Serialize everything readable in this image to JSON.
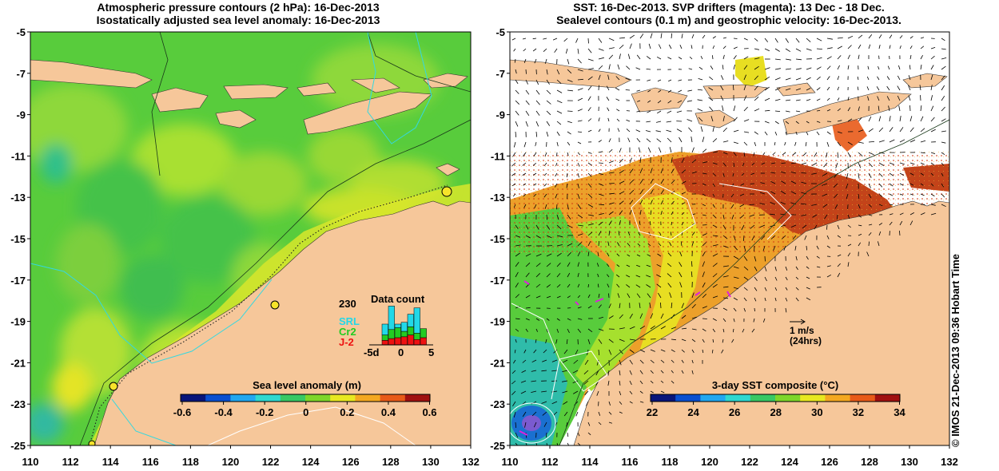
{
  "left_panel": {
    "title_line1": "Atmospheric pressure contours (2 hPa): 16-Dec-2013",
    "title_line2": "Isostatically adjusted sea level anomaly: 16-Dec-2013",
    "colorbar_title": "Sea level anomaly (m)",
    "colorbar_ticks": [
      "-0.6",
      "-0.4",
      "-0.2",
      "0",
      "0.2",
      "0.4",
      "0.6"
    ],
    "colorbar_colors": [
      "#08157a",
      "#0a4fd0",
      "#21a7f0",
      "#2fd8d0",
      "#38c864",
      "#7ed62a",
      "#e8e820",
      "#f4a820",
      "#e85a18",
      "#a01010"
    ],
    "inset": {
      "title": "Data count",
      "max_label": "230",
      "x_ticks": [
        "-5d",
        "0",
        "5"
      ],
      "missions": [
        {
          "name": "SRL",
          "color": "#22d8e8"
        },
        {
          "name": "Cr2",
          "color": "#22cc22"
        },
        {
          "name": "J-2",
          "color": "#ee1111"
        }
      ],
      "bars": [
        {
          "day": -5,
          "srl": 0,
          "cr2": 0,
          "j2": 0
        },
        {
          "day": -4,
          "srl": 0,
          "cr2": 0,
          "j2": 0
        },
        {
          "day": -3,
          "srl": 60,
          "cr2": 30,
          "j2": 25
        },
        {
          "day": -2,
          "srl": 130,
          "cr2": 50,
          "j2": 35
        },
        {
          "day": -1,
          "srl": 20,
          "cr2": 55,
          "j2": 40
        },
        {
          "day": 0,
          "srl": 50,
          "cr2": 30,
          "j2": 45
        },
        {
          "day": 1,
          "srl": 70,
          "cr2": 45,
          "j2": 55
        },
        {
          "day": 2,
          "srl": 140,
          "cr2": 35,
          "j2": 30
        },
        {
          "day": 3,
          "srl": 0,
          "cr2": 50,
          "j2": 40
        },
        {
          "day": 4,
          "srl": 0,
          "cr2": 0,
          "j2": 0
        }
      ]
    }
  },
  "right_panel": {
    "title_line1": "SST: 16-Dec-2013. SVP drifters (magenta): 13 Dec - 18 Dec.",
    "title_line2": "Sealevel contours (0.1 m) and geostrophic velocity: 16-Dec-2013.",
    "colorbar_title": "3-day SST composite (°C)",
    "colorbar_ticks": [
      "22",
      "24",
      "26",
      "28",
      "30",
      "32",
      "34"
    ],
    "colorbar_colors": [
      "#08157a",
      "#0a4fd0",
      "#21a7f0",
      "#2fd8d0",
      "#38c864",
      "#7ed62a",
      "#e8e820",
      "#f4a820",
      "#e85a18",
      "#a01010"
    ],
    "velocity_scale": "1 m/s",
    "velocity_scale_note": "(24hrs)"
  },
  "axes": {
    "lon_ticks": [
      "110",
      "112",
      "114",
      "116",
      "118",
      "120",
      "122",
      "124",
      "126",
      "128",
      "130",
      "132"
    ],
    "lat_ticks": [
      "-5",
      "-7",
      "-9",
      "-11",
      "-13",
      "-15",
      "-17",
      "-19",
      "-21",
      "-23",
      "-25"
    ],
    "lon_range": [
      110,
      132
    ],
    "lat_range": [
      -25,
      -5
    ]
  },
  "credit": "© IMOS 21-Dec-2013 09:36 Hobart Time",
  "colors": {
    "land": "#f6c79a",
    "sea_green": "#58cc3c",
    "sea_yellow_green": "#a6e02e",
    "sst_orange": "#eca02a",
    "sst_red": "#c2441a",
    "drifter": "#dd22dd"
  }
}
